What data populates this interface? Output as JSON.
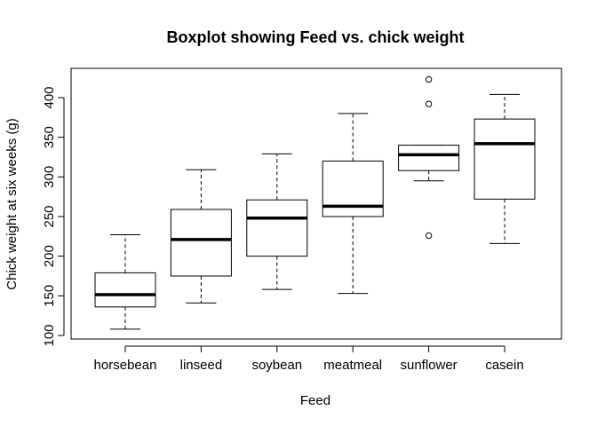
{
  "chart_data": {
    "type": "boxplot",
    "title": "Boxplot showing Feed vs. chick weight",
    "xlabel": "Feed",
    "ylabel": "Chick weight at six weeks (g)",
    "ylim": [
      100,
      420
    ],
    "yticks": [
      100,
      150,
      200,
      250,
      300,
      350,
      400
    ],
    "grid": false,
    "legend": "none",
    "categories": [
      "horsebean",
      "linseed",
      "soybean",
      "meatmeal",
      "sunflower",
      "casein"
    ],
    "boxes": [
      {
        "category": "horsebean",
        "whisker_low": 108,
        "q1": 136,
        "median": 151.5,
        "q3": 179,
        "whisker_high": 227,
        "outliers": []
      },
      {
        "category": "linseed",
        "whisker_low": 141,
        "q1": 175,
        "median": 221,
        "q3": 259,
        "whisker_high": 309,
        "outliers": []
      },
      {
        "category": "soybean",
        "whisker_low": 158,
        "q1": 200,
        "median": 248,
        "q3": 271,
        "whisker_high": 329,
        "outliers": []
      },
      {
        "category": "meatmeal",
        "whisker_low": 153,
        "q1": 250,
        "median": 263,
        "q3": 320,
        "whisker_high": 380,
        "outliers": []
      },
      {
        "category": "sunflower",
        "whisker_low": 295,
        "q1": 308,
        "median": 328,
        "q3": 340,
        "whisker_high": 340,
        "outliers": [
          423,
          392,
          226
        ]
      },
      {
        "category": "casein",
        "whisker_low": 216,
        "q1": 272,
        "median": 342,
        "q3": 373,
        "whisker_high": 404,
        "outliers": []
      }
    ]
  }
}
